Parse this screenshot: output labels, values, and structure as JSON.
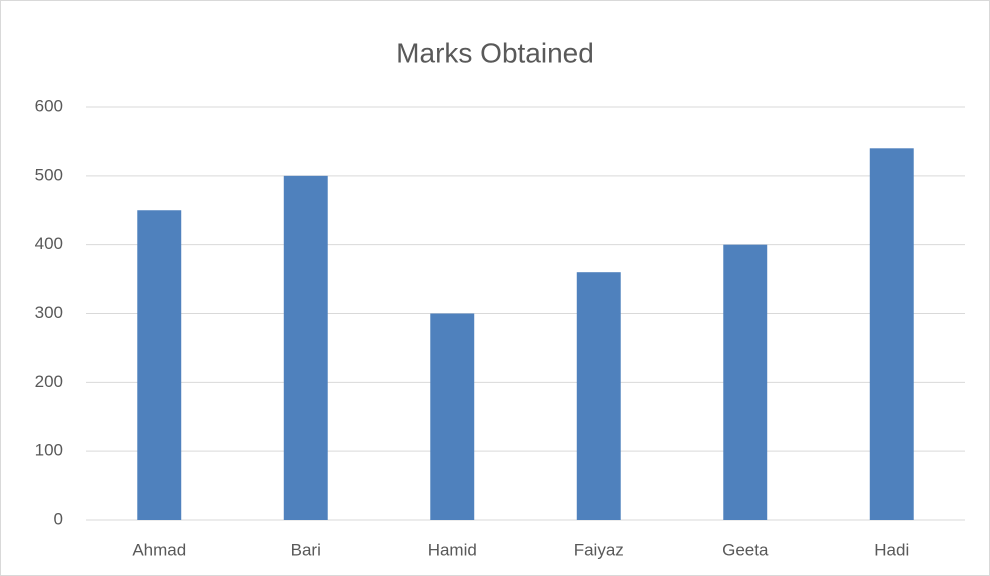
{
  "chart_data": {
    "type": "bar",
    "title": "Marks Obtained",
    "categories": [
      "Ahmad",
      "Bari",
      "Hamid",
      "Faiyaz",
      "Geeta",
      "Hadi"
    ],
    "values": [
      450,
      500,
      300,
      360,
      400,
      540
    ],
    "color": "#4f81bd",
    "ylim": [
      0,
      600
    ],
    "yticks": [
      0,
      100,
      200,
      300,
      400,
      500,
      600
    ],
    "grid": true
  }
}
